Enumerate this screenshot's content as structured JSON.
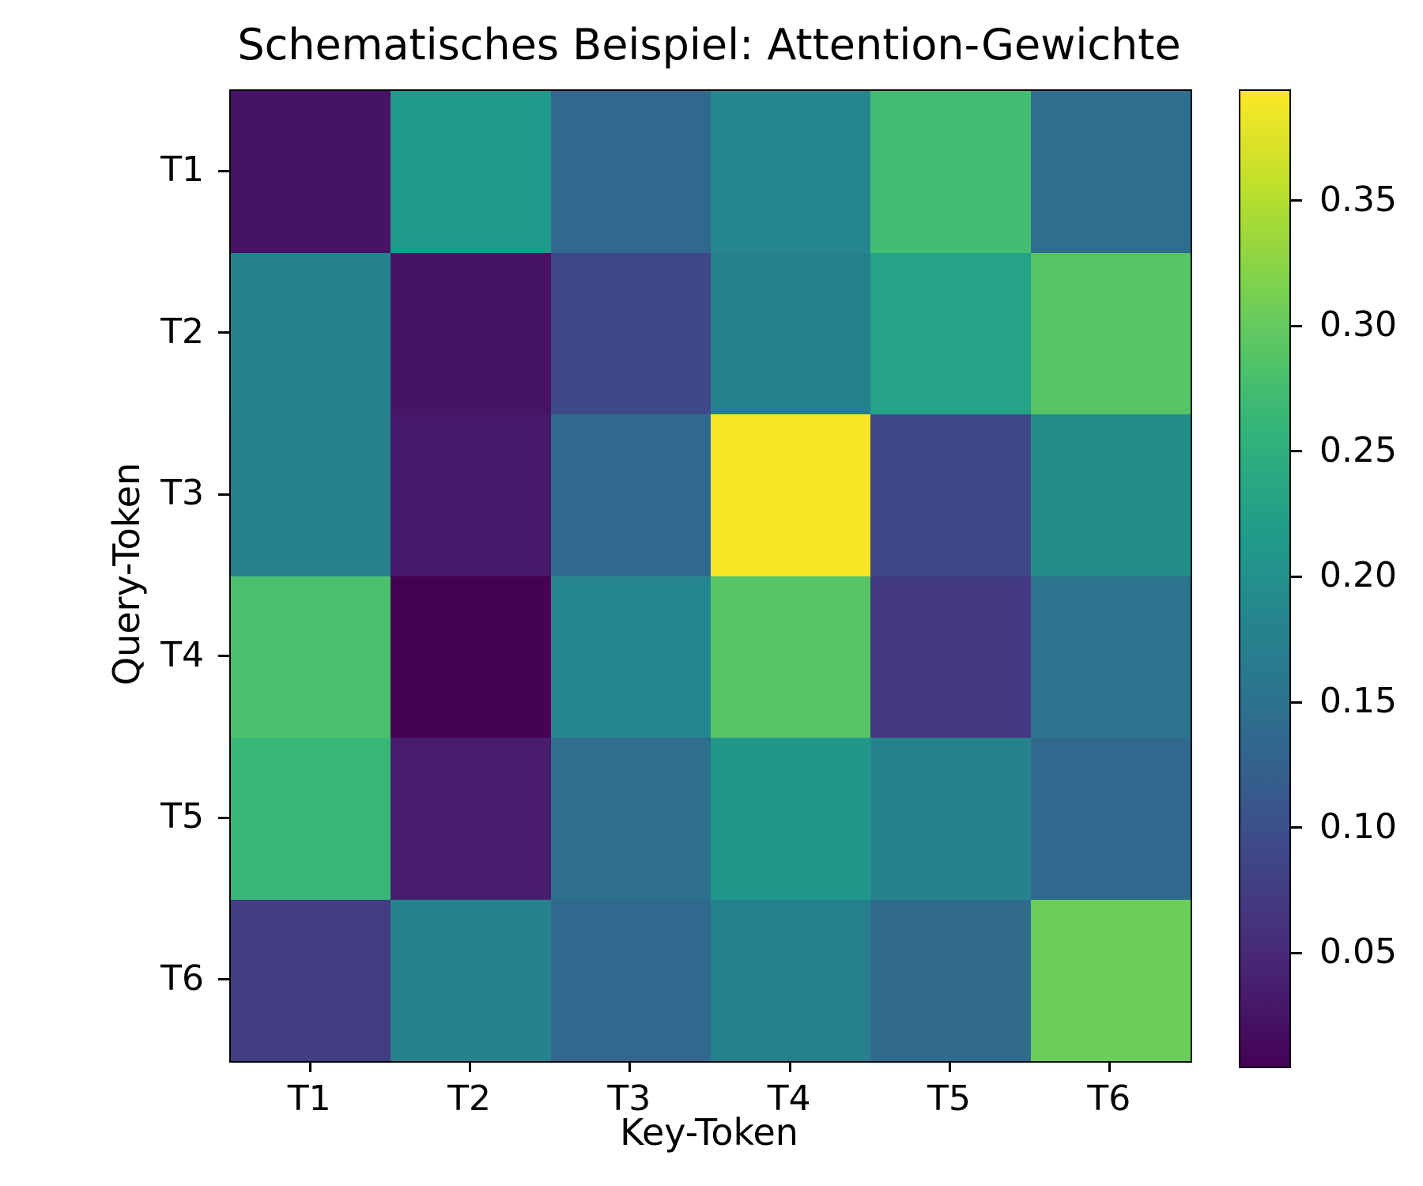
{
  "chart_data": {
    "type": "heatmap",
    "title": "Schematisches Beispiel: Attention-Gewichte",
    "xlabel": "Key-Token",
    "ylabel": "Query-Token",
    "x_categories": [
      "T1",
      "T2",
      "T3",
      "T4",
      "T5",
      "T6"
    ],
    "y_categories": [
      "T1",
      "T2",
      "T3",
      "T4",
      "T5",
      "T6"
    ],
    "matrix": [
      [
        0.025,
        0.215,
        0.135,
        0.185,
        0.275,
        0.145
      ],
      [
        0.18,
        0.025,
        0.09,
        0.175,
        0.23,
        0.29
      ],
      [
        0.175,
        0.03,
        0.135,
        0.39,
        0.09,
        0.195
      ],
      [
        0.28,
        0.005,
        0.185,
        0.29,
        0.07,
        0.155
      ],
      [
        0.265,
        0.035,
        0.145,
        0.21,
        0.18,
        0.135
      ],
      [
        0.075,
        0.18,
        0.135,
        0.175,
        0.14,
        0.305
      ]
    ],
    "colormap": "viridis",
    "vmin": 0.005,
    "vmax": 0.394,
    "colorbar_ticks": [
      0.05,
      0.1,
      0.15,
      0.2,
      0.25,
      0.3,
      0.35
    ],
    "colorbar_tick_labels": [
      "0.05",
      "0.10",
      "0.15",
      "0.20",
      "0.25",
      "0.30",
      "0.35"
    ],
    "grid": false,
    "legend_position": "colorbar-right"
  }
}
